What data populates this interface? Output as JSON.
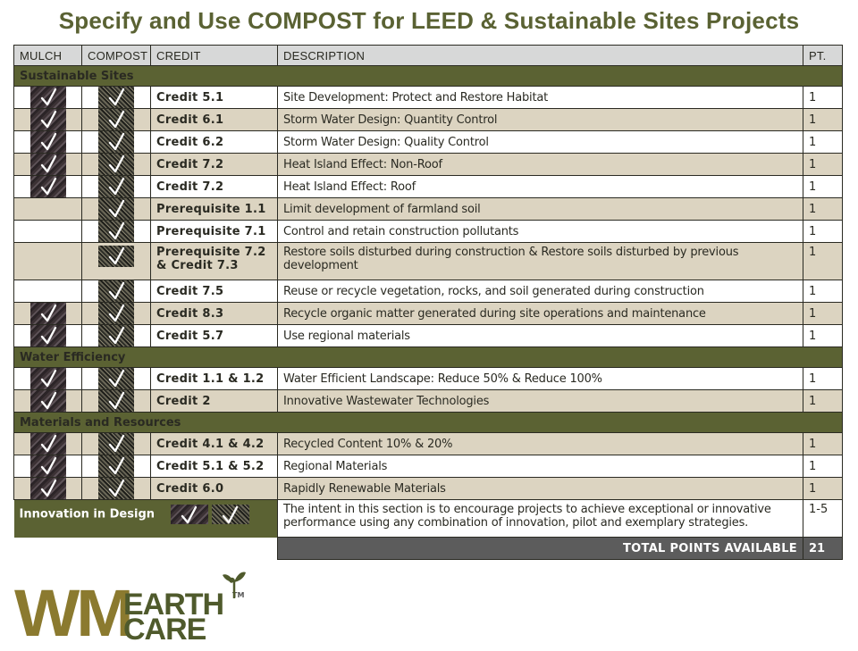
{
  "title": "Specify and Use COMPOST for LEED & Sustainable Sites Projects",
  "colors": {
    "title": "#5a6233",
    "section_band": "#5b6233",
    "header_bg": "#d7d8d8",
    "tan_row": "#dcd4c1",
    "total_band": "#5c5c5c",
    "logo_wm": "#8b7a2f",
    "logo_earthcare": "#4f5a2c"
  },
  "columns": [
    "MULCH",
    "COMPOST",
    "CREDIT",
    "DESCRIPTION",
    "PT."
  ],
  "sections": [
    {
      "name": "Sustainable Sites",
      "rows": [
        {
          "mulch": true,
          "compost": true,
          "credit": "Credit 5.1",
          "description": "Site Development: Protect and Restore Habitat",
          "pt": "1"
        },
        {
          "mulch": true,
          "compost": true,
          "credit": "Credit 6.1",
          "description": "Storm Water Design: Quantity Control",
          "pt": "1"
        },
        {
          "mulch": true,
          "compost": true,
          "credit": "Credit 6.2",
          "description": "Storm Water Design: Quality Control",
          "pt": "1"
        },
        {
          "mulch": true,
          "compost": true,
          "credit": "Credit 7.2",
          "description": "Heat Island Effect: Non-Roof",
          "pt": "1"
        },
        {
          "mulch": true,
          "compost": true,
          "credit": "Credit 7.2",
          "description": "Heat Island Effect: Roof",
          "pt": "1"
        },
        {
          "mulch": false,
          "compost": true,
          "credit": "Prerequisite 1.1",
          "description": "Limit development of farmland soil",
          "pt": "1"
        },
        {
          "mulch": false,
          "compost": true,
          "credit": "Prerequisite  7.1",
          "description": "Control and retain construction pollutants",
          "pt": "1"
        },
        {
          "mulch": false,
          "compost": true,
          "credit": "Prerequisite 7.2 & Credit 7.3",
          "description": "Restore soils disturbed during construction & Restore soils disturbed by previous development",
          "pt": "1"
        },
        {
          "mulch": false,
          "compost": true,
          "credit": "Credit 7.5",
          "description": "Reuse or recycle vegetation, rocks, and soil generated during construction",
          "pt": "1"
        },
        {
          "mulch": true,
          "compost": true,
          "credit": "Credit  8.3",
          "description": "Recycle organic matter generated during site operations and maintenance",
          "pt": "1"
        },
        {
          "mulch": true,
          "compost": true,
          "credit": "Credit 5.7",
          "description": "Use regional materials",
          "pt": "1"
        }
      ]
    },
    {
      "name": "Water Efficiency",
      "rows": [
        {
          "mulch": true,
          "compost": true,
          "credit": "Credit 1.1 & 1.2",
          "description": "Water Efficient Landscape: Reduce 50% & Reduce 100%",
          "pt": "1"
        },
        {
          "mulch": true,
          "compost": true,
          "credit": "Credit 2",
          "description": "Innovative Wastewater Technologies",
          "pt": "1"
        }
      ]
    },
    {
      "name": "Materials and Resources",
      "rows": [
        {
          "mulch": true,
          "compost": true,
          "credit": "Credit 4.1 & 4.2",
          "description": "Recycled Content 10% & 20%",
          "pt": "1"
        },
        {
          "mulch": true,
          "compost": true,
          "credit": "Credit 5.1 & 5.2",
          "description": "Regional Materials",
          "pt": "1"
        },
        {
          "mulch": true,
          "compost": true,
          "credit": "Credit 6.0",
          "description": "Rapidly Renewable Materials",
          "pt": "1"
        }
      ]
    }
  ],
  "innovation": {
    "name": "Innovation in Design",
    "mulch": true,
    "compost": true,
    "description": "The intent in this section is to encourage projects to achieve exceptional or innovative performance using any combination of innovation, pilot and exemplary strategies.",
    "pt": "1-5"
  },
  "total": {
    "label": "TOTAL POINTS AVAILABLE",
    "value": "21"
  },
  "logo": {
    "wm": "WM",
    "earth": "EARTH",
    "care": "CARE",
    "tm": "TM",
    "icon": "sprout-icon"
  }
}
